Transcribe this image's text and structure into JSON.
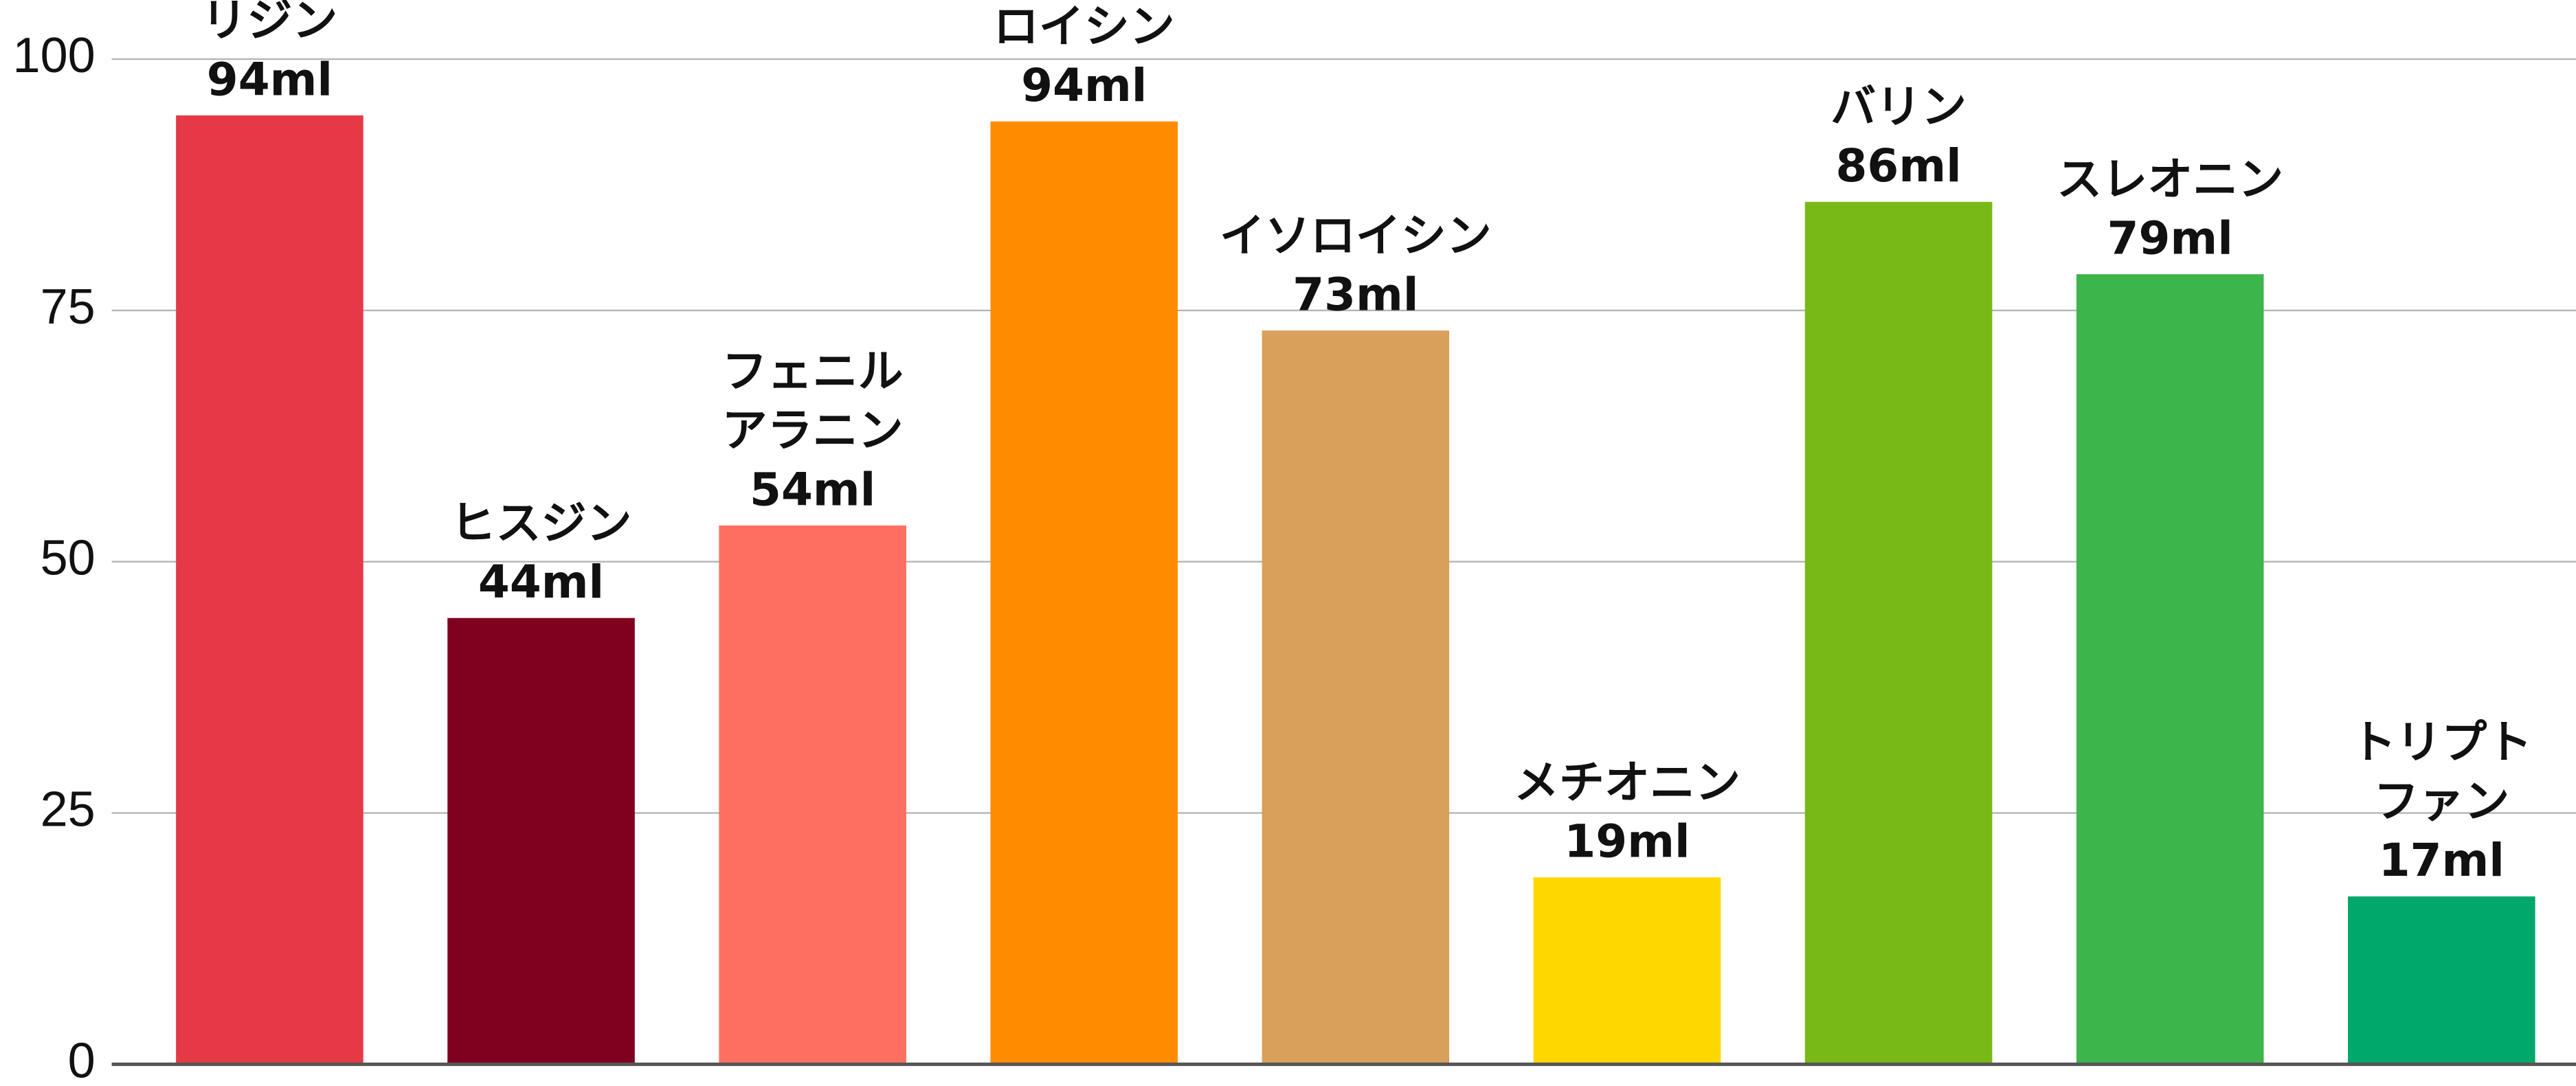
{
  "chart_data": {
    "type": "bar",
    "categories": [
      "リジン",
      "ヒスジン",
      "フェニル\nアラニン",
      "ロイシン",
      "イソロイシン",
      "メチオニン",
      "バリン",
      "スレオニン",
      "トリプト\nファン"
    ],
    "values": [
      94.4,
      44.4,
      53.6,
      93.8,
      73.0,
      18.6,
      85.8,
      78.6,
      16.7
    ],
    "value_labels": [
      "94ml",
      "44ml",
      "54ml",
      "94ml",
      "73ml",
      "19ml",
      "86ml",
      "79ml",
      "17ml"
    ],
    "colors": [
      "#e63946",
      "#800020",
      "#ff6f61",
      "#ff8c00",
      "#d9a05b",
      "#ffd700",
      "#78b918",
      "#3cb54a",
      "#00a86b"
    ],
    "ylim": [
      0,
      100
    ],
    "yticks": [
      0,
      25,
      50,
      75,
      100
    ],
    "grid": true
  }
}
